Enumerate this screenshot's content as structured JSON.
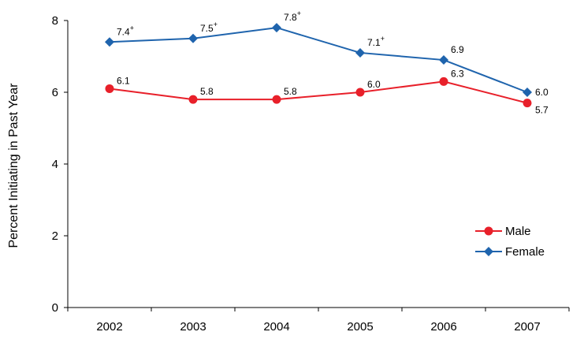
{
  "chart_data": {
    "type": "line",
    "title": "",
    "xlabel": "",
    "ylabel": "Percent Initiating in Past Year",
    "categories": [
      "2002",
      "2003",
      "2004",
      "2005",
      "2006",
      "2007"
    ],
    "ylim": [
      0,
      8
    ],
    "yticks": [
      "0",
      "2",
      "4",
      "6",
      "8"
    ],
    "grid": false,
    "legend_position": "right",
    "series": [
      {
        "name": "Male",
        "values": [
          6.1,
          5.8,
          5.8,
          6.0,
          6.3,
          5.7
        ],
        "labels": [
          "6.1",
          "5.8",
          "5.8",
          "6.0",
          "6.3",
          "5.7"
        ],
        "sup": [
          "",
          "",
          "",
          "",
          "",
          ""
        ],
        "color": "#e8202a",
        "marker": "circle"
      },
      {
        "name": "Female",
        "values": [
          7.4,
          7.5,
          7.8,
          7.1,
          6.9,
          6.0
        ],
        "labels": [
          "7.4",
          "7.5",
          "7.8",
          "7.1",
          "6.9",
          "6.0"
        ],
        "sup": [
          "+",
          "+",
          "+",
          "+",
          "",
          ""
        ],
        "color": "#1f64ad",
        "marker": "diamond"
      }
    ]
  }
}
